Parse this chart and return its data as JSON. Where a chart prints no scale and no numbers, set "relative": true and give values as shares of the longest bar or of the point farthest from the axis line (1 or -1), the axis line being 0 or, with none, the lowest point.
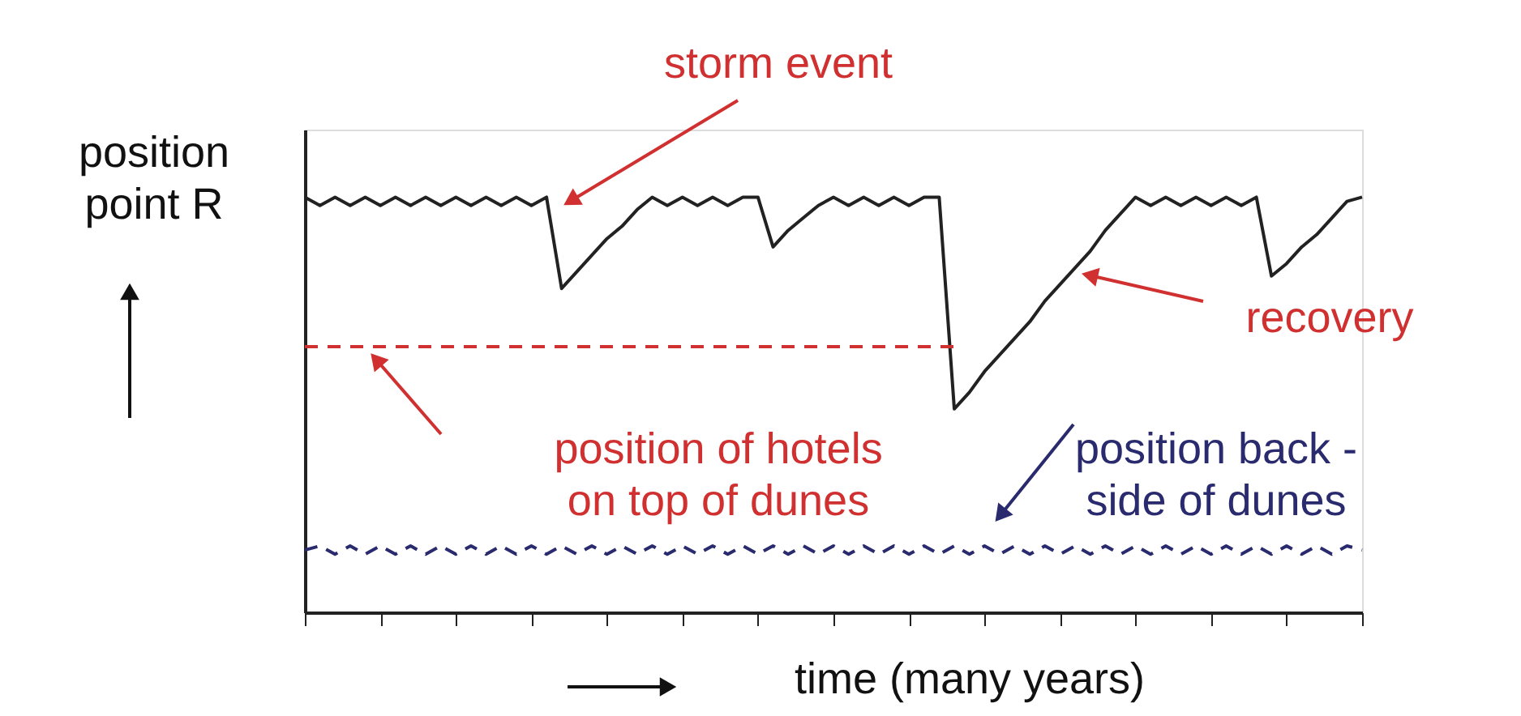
{
  "chart_data": {
    "type": "line",
    "relative": true,
    "xlabel": "time  (many years)",
    "ylabel": "position point R",
    "categories": [
      null,
      null,
      null,
      null,
      null,
      null,
      null,
      null,
      null,
      null,
      null,
      null,
      null,
      null,
      null,
      null,
      null,
      null,
      null,
      null,
      null,
      null,
      null,
      null,
      null,
      null,
      null,
      null,
      null,
      null,
      null,
      null,
      null,
      null,
      null,
      null,
      null,
      null,
      null,
      null,
      null,
      null,
      null,
      null,
      null,
      null,
      null,
      null,
      null,
      null,
      null,
      null,
      null,
      null,
      null,
      null,
      null,
      null,
      null,
      null,
      null,
      null,
      null,
      null,
      null,
      null,
      null,
      null,
      null,
      null,
      null
    ],
    "series": [
      {
        "color": "#222222",
        "line_style": "solid",
        "values": [
          1.0,
          0.98,
          1.0,
          0.98,
          1.0,
          0.98,
          1.0,
          0.98,
          1.0,
          0.98,
          1.0,
          0.98,
          1.0,
          0.98,
          1.0,
          0.98,
          1.0,
          0.78,
          0.82,
          0.86,
          0.9,
          0.93,
          0.97,
          1.0,
          0.98,
          1.0,
          0.98,
          1.0,
          0.98,
          1.0,
          1.0,
          0.88,
          0.92,
          0.95,
          0.98,
          1.0,
          0.98,
          1.0,
          0.98,
          1.0,
          0.98,
          1.0,
          1.0,
          0.49,
          0.53,
          0.58,
          0.62,
          0.66,
          0.7,
          0.75,
          0.79,
          0.83,
          0.87,
          0.92,
          0.96,
          1.0,
          0.98,
          1.0,
          0.98,
          1.0,
          0.98,
          1.0,
          0.98,
          1.0,
          0.81,
          0.84,
          0.88,
          0.91,
          0.95,
          0.99,
          1.0
        ]
      },
      {
        "color": "#d03030",
        "line_style": "dashed",
        "values": [
          0.64,
          0.64,
          0.64,
          0.64,
          0.64,
          0.64,
          0.64,
          0.64,
          0.64,
          0.64,
          0.64,
          0.64,
          0.64,
          0.64,
          0.64,
          0.64,
          0.64,
          0.64,
          0.64,
          0.64,
          0.64,
          0.64,
          0.64,
          0.64,
          0.64,
          0.64,
          0.64,
          0.64,
          0.64,
          0.64,
          0.64,
          0.64,
          0.64,
          0.64,
          0.64,
          0.64,
          0.64,
          0.64,
          0.64,
          0.64,
          0.64,
          0.64,
          0.64,
          0.64,
          null,
          null,
          null,
          null,
          null,
          null,
          null,
          null,
          null,
          null,
          null,
          null,
          null,
          null,
          null,
          null,
          null,
          null,
          null,
          null,
          null,
          null,
          null,
          null,
          null,
          null,
          null
        ]
      },
      {
        "color": "#2a2a6e",
        "line_style": "dashed",
        "values": [
          0.15,
          0.16,
          0.14,
          0.16,
          0.14,
          0.16,
          0.14,
          0.16,
          0.14,
          0.16,
          0.14,
          0.16,
          0.14,
          0.16,
          0.14,
          0.16,
          0.14,
          0.16,
          0.14,
          0.16,
          0.14,
          0.16,
          0.14,
          0.16,
          0.14,
          0.16,
          0.14,
          0.16,
          0.14,
          0.16,
          0.14,
          0.16,
          0.14,
          0.16,
          0.14,
          0.16,
          0.14,
          0.16,
          0.14,
          0.16,
          0.14,
          0.16,
          0.14,
          0.16,
          0.14,
          0.16,
          0.14,
          0.16,
          0.14,
          0.16,
          0.14,
          0.16,
          0.14,
          0.16,
          0.14,
          0.16,
          0.14,
          0.16,
          0.14,
          0.16,
          0.14,
          0.16,
          0.14,
          0.16,
          0.14,
          0.16,
          0.14,
          0.16,
          0.14,
          0.16,
          0.15
        ]
      }
    ],
    "annotations": [
      "storm event",
      "recovery",
      "position of hotels on top of dunes",
      "position back - side of dunes"
    ],
    "grid": false
  }
}
